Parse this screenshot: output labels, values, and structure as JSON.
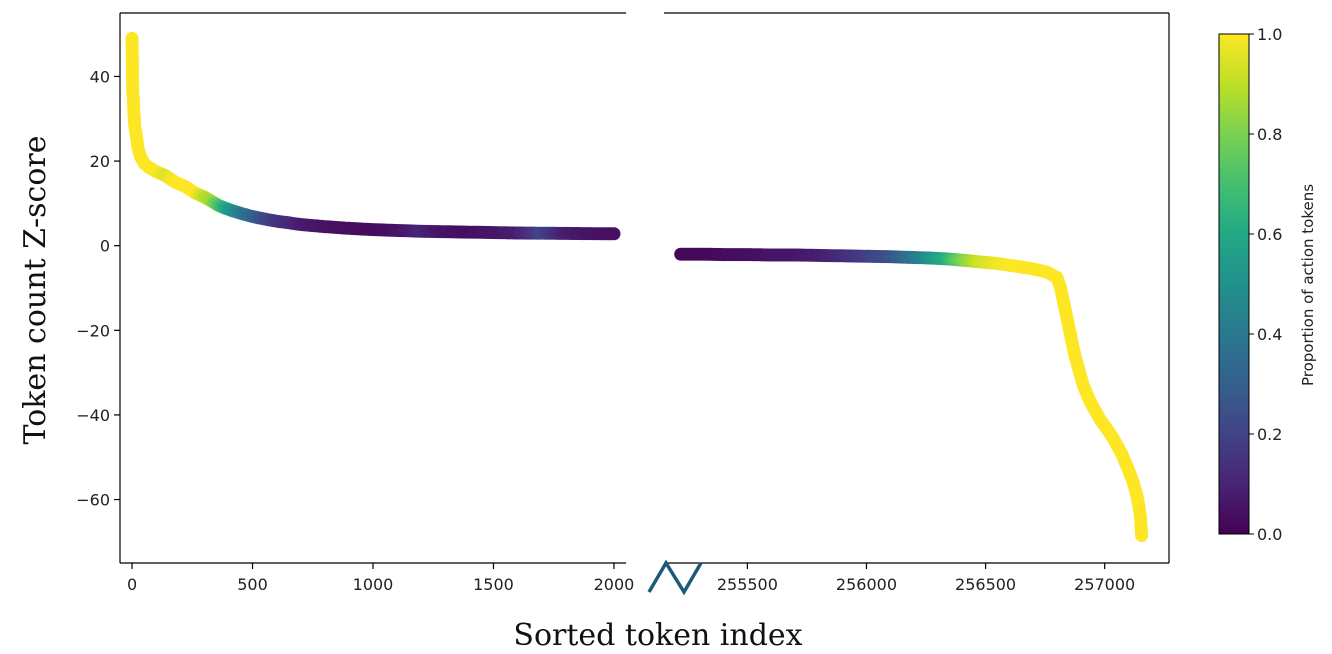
{
  "chart_data": {
    "type": "scatter",
    "xlabel": "Sorted token index",
    "ylabel": "Token count Z-score",
    "colorbar_label": "Proportion of action tokens",
    "colormap": "viridis",
    "colorbar_range": [
      0,
      1
    ],
    "colorbar_ticks": [
      "0.0",
      "0.2",
      "0.4",
      "0.6",
      "0.8",
      "1.0"
    ],
    "ylim": [
      -75,
      55
    ],
    "y_ticks": [
      40,
      20,
      0,
      -20,
      -40,
      -60
    ],
    "y_tick_labels": [
      "40",
      "20",
      "0",
      "−20",
      "−40",
      "−60"
    ],
    "broken_x_axis": true,
    "left_panel": {
      "xlim": [
        -50,
        2050
      ],
      "x_ticks": [
        0,
        500,
        1000,
        1500,
        2000
      ],
      "x_tick_labels": [
        "0",
        "500",
        "1000",
        "1500",
        "2000"
      ],
      "points": [
        [
          0,
          49,
          1.0
        ],
        [
          3,
          36,
          1.0
        ],
        [
          5,
          35,
          1.0
        ],
        [
          8,
          31,
          1.0
        ],
        [
          12,
          28,
          1.0
        ],
        [
          18,
          26,
          1.0
        ],
        [
          25,
          23,
          1.0
        ],
        [
          35,
          21,
          1.0
        ],
        [
          50,
          19.5,
          1.0
        ],
        [
          70,
          18.5,
          1.0
        ],
        [
          100,
          17.5,
          1.0
        ],
        [
          140,
          16.5,
          0.95
        ],
        [
          180,
          15,
          1.0
        ],
        [
          220,
          14,
          1.0
        ],
        [
          260,
          12.5,
          1.0
        ],
        [
          300,
          11.5,
          0.9
        ],
        [
          330,
          10.5,
          0.85
        ],
        [
          360,
          9.5,
          0.72
        ],
        [
          390,
          8.8,
          0.6
        ],
        [
          420,
          8.2,
          0.5
        ],
        [
          460,
          7.5,
          0.4
        ],
        [
          500,
          6.9,
          0.32
        ],
        [
          550,
          6.3,
          0.22
        ],
        [
          600,
          5.8,
          0.15
        ],
        [
          650,
          5.4,
          0.12
        ],
        [
          700,
          5.0,
          0.08
        ],
        [
          800,
          4.5,
          0.05
        ],
        [
          900,
          4.1,
          0.04
        ],
        [
          1000,
          3.8,
          0.03
        ],
        [
          1100,
          3.6,
          0.05
        ],
        [
          1200,
          3.4,
          0.1
        ],
        [
          1300,
          3.3,
          0.05
        ],
        [
          1400,
          3.2,
          0.04
        ],
        [
          1500,
          3.1,
          0.06
        ],
        [
          1600,
          3.0,
          0.08
        ],
        [
          1700,
          2.95,
          0.2
        ],
        [
          1800,
          2.9,
          0.08
        ],
        [
          1900,
          2.85,
          0.05
        ],
        [
          2000,
          2.8,
          0.04
        ]
      ]
    },
    "right_panel": {
      "xlim": [
        255150,
        257270
      ],
      "x_ticks": [
        255500,
        256000,
        256500,
        257000
      ],
      "x_tick_labels": [
        "255500",
        "256000",
        "256500",
        "257000"
      ],
      "points": [
        [
          255220,
          -2.0,
          0.02
        ],
        [
          255300,
          -2.0,
          0.02
        ],
        [
          255400,
          -2.1,
          0.03
        ],
        [
          255500,
          -2.1,
          0.04
        ],
        [
          255600,
          -2.2,
          0.05
        ],
        [
          255700,
          -2.2,
          0.06
        ],
        [
          255800,
          -2.3,
          0.08
        ],
        [
          255900,
          -2.4,
          0.12
        ],
        [
          256000,
          -2.5,
          0.18
        ],
        [
          256100,
          -2.6,
          0.25
        ],
        [
          256200,
          -2.8,
          0.4
        ],
        [
          256260,
          -2.9,
          0.5
        ],
        [
          256330,
          -3.1,
          0.62
        ],
        [
          256400,
          -3.4,
          0.8
        ],
        [
          256470,
          -3.8,
          0.92
        ],
        [
          256550,
          -4.2,
          0.98
        ],
        [
          256620,
          -4.8,
          1.0
        ],
        [
          256700,
          -5.5,
          1.0
        ],
        [
          256760,
          -6.3,
          1.0
        ],
        [
          256800,
          -7.5,
          1.0
        ],
        [
          256815,
          -10,
          1.0
        ],
        [
          256830,
          -14,
          1.0
        ],
        [
          256845,
          -18,
          1.0
        ],
        [
          256860,
          -22,
          1.0
        ],
        [
          256875,
          -26,
          1.0
        ],
        [
          256890,
          -29,
          1.0
        ],
        [
          256910,
          -33,
          1.0
        ],
        [
          256940,
          -37,
          1.0
        ],
        [
          256980,
          -41,
          1.0
        ],
        [
          257030,
          -45,
          1.0
        ],
        [
          257070,
          -49,
          1.0
        ],
        [
          257100,
          -53,
          1.0
        ],
        [
          257120,
          -56,
          1.0
        ],
        [
          257135,
          -59,
          1.0
        ],
        [
          257145,
          -62,
          1.0
        ],
        [
          257150,
          -64,
          1.0
        ],
        [
          257155,
          -68.5,
          1.0
        ]
      ]
    }
  }
}
